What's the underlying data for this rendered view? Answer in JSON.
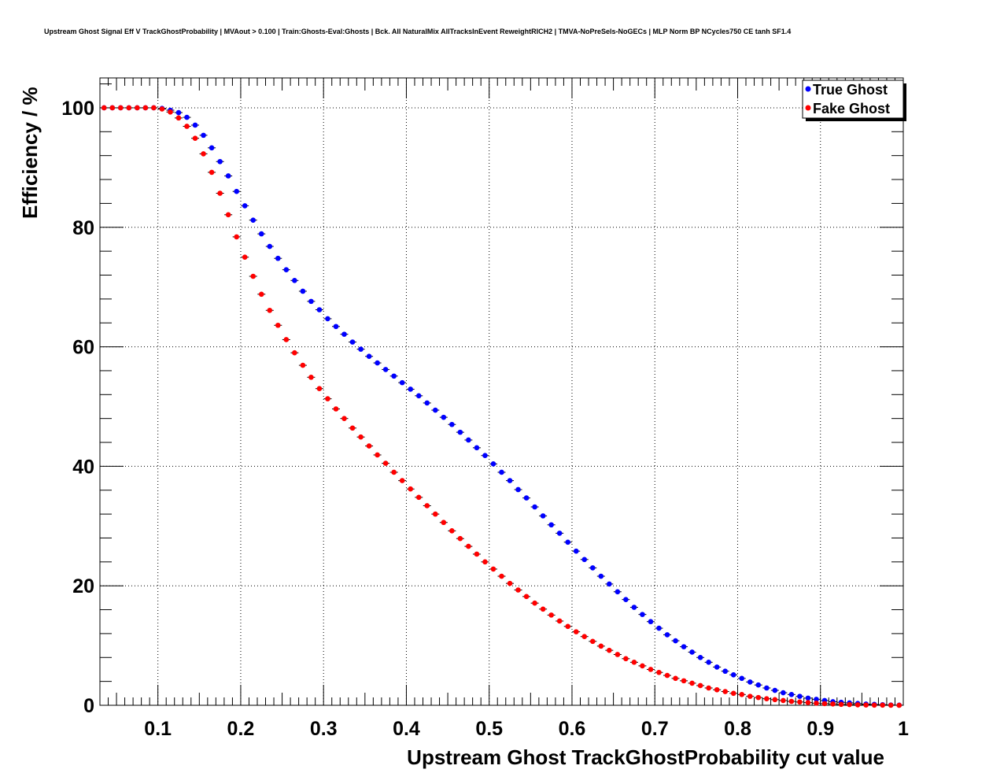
{
  "chart_data": {
    "type": "scatter",
    "title": "Upstream Ghost Signal Eff V TrackGhostProbability | MVAout > 0.100 | Train:Ghosts-Eval:Ghosts | Bck. All NaturalMix AllTracksInEvent ReweightRICH2 | TMVA-NoPreSels-NoGECs | MLP Norm BP NCycles750 CE tanh SF1.4",
    "xlabel": "Upstream Ghost TrackGhostProbability cut value",
    "ylabel": "Efficiency / %",
    "xlim": [
      0.03,
      1.0
    ],
    "ylim": [
      0,
      105
    ],
    "xticks": [
      0.1,
      0.2,
      0.3,
      0.4,
      0.5,
      0.6,
      0.7,
      0.8,
      0.9,
      1.0
    ],
    "xtick_labels": [
      "0.1",
      "0.2",
      "0.3",
      "0.4",
      "0.5",
      "0.6",
      "0.7",
      "0.8",
      "0.9",
      "1"
    ],
    "yticks": [
      0,
      20,
      40,
      60,
      80,
      100
    ],
    "ytick_labels": [
      "0",
      "20",
      "40",
      "60",
      "80",
      "100"
    ],
    "grid": true,
    "legend_position": "top-right",
    "series": [
      {
        "name": "True Ghost",
        "color": "#0000ff",
        "points": [
          [
            0.035,
            100.0
          ],
          [
            0.045,
            100.0
          ],
          [
            0.055,
            100.0
          ],
          [
            0.065,
            100.0
          ],
          [
            0.075,
            100.0
          ],
          [
            0.085,
            100.0
          ],
          [
            0.095,
            100.0
          ],
          [
            0.105,
            99.9
          ],
          [
            0.115,
            99.6
          ],
          [
            0.125,
            99.2
          ],
          [
            0.135,
            98.4
          ],
          [
            0.145,
            97.1
          ],
          [
            0.155,
            95.4
          ],
          [
            0.165,
            93.3
          ],
          [
            0.175,
            91.0
          ],
          [
            0.185,
            88.6
          ],
          [
            0.195,
            86.0
          ],
          [
            0.205,
            83.6
          ],
          [
            0.215,
            81.2
          ],
          [
            0.225,
            78.9
          ],
          [
            0.235,
            76.8
          ],
          [
            0.245,
            74.8
          ],
          [
            0.255,
            72.9
          ],
          [
            0.265,
            71.1
          ],
          [
            0.275,
            69.3
          ],
          [
            0.285,
            67.6
          ],
          [
            0.295,
            66.2
          ],
          [
            0.305,
            64.7
          ],
          [
            0.315,
            63.4
          ],
          [
            0.325,
            62.1
          ],
          [
            0.335,
            60.8
          ],
          [
            0.345,
            59.6
          ],
          [
            0.355,
            58.4
          ],
          [
            0.365,
            57.3
          ],
          [
            0.375,
            56.2
          ],
          [
            0.385,
            55.1
          ],
          [
            0.395,
            54.0
          ],
          [
            0.405,
            52.9
          ],
          [
            0.415,
            51.8
          ],
          [
            0.425,
            50.6
          ],
          [
            0.435,
            49.4
          ],
          [
            0.445,
            48.2
          ],
          [
            0.455,
            47.0
          ],
          [
            0.465,
            45.7
          ],
          [
            0.475,
            44.4
          ],
          [
            0.485,
            43.1
          ],
          [
            0.495,
            41.8
          ],
          [
            0.505,
            40.4
          ],
          [
            0.515,
            39.0
          ],
          [
            0.525,
            37.6
          ],
          [
            0.535,
            36.1
          ],
          [
            0.545,
            34.7
          ],
          [
            0.555,
            33.2
          ],
          [
            0.565,
            31.7
          ],
          [
            0.575,
            30.2
          ],
          [
            0.585,
            28.8
          ],
          [
            0.595,
            27.3
          ],
          [
            0.605,
            25.8
          ],
          [
            0.615,
            24.4
          ],
          [
            0.625,
            23.0
          ],
          [
            0.635,
            21.6
          ],
          [
            0.645,
            20.3
          ],
          [
            0.655,
            19.0
          ],
          [
            0.665,
            17.7
          ],
          [
            0.675,
            16.4
          ],
          [
            0.685,
            15.2
          ],
          [
            0.695,
            14.0
          ],
          [
            0.705,
            12.9
          ],
          [
            0.715,
            11.8
          ],
          [
            0.725,
            10.8
          ],
          [
            0.735,
            9.8
          ],
          [
            0.745,
            8.9
          ],
          [
            0.755,
            8.0
          ],
          [
            0.765,
            7.2
          ],
          [
            0.775,
            6.4
          ],
          [
            0.785,
            5.7
          ],
          [
            0.795,
            5.1
          ],
          [
            0.805,
            4.5
          ],
          [
            0.815,
            3.9
          ],
          [
            0.825,
            3.4
          ],
          [
            0.835,
            2.9
          ],
          [
            0.845,
            2.5
          ],
          [
            0.855,
            2.1
          ],
          [
            0.865,
            1.8
          ],
          [
            0.875,
            1.5
          ],
          [
            0.885,
            1.2
          ],
          [
            0.895,
            1.0
          ],
          [
            0.905,
            0.8
          ],
          [
            0.915,
            0.6
          ],
          [
            0.925,
            0.5
          ],
          [
            0.935,
            0.4
          ],
          [
            0.945,
            0.3
          ],
          [
            0.955,
            0.2
          ],
          [
            0.965,
            0.15
          ],
          [
            0.975,
            0.1
          ],
          [
            0.985,
            0.05
          ],
          [
            0.995,
            0.02
          ]
        ]
      },
      {
        "name": "Fake Ghost",
        "color": "#ff0000",
        "points": [
          [
            0.035,
            100.0
          ],
          [
            0.045,
            100.0
          ],
          [
            0.055,
            100.0
          ],
          [
            0.065,
            100.0
          ],
          [
            0.075,
            100.0
          ],
          [
            0.085,
            100.0
          ],
          [
            0.095,
            100.0
          ],
          [
            0.105,
            99.8
          ],
          [
            0.115,
            99.3
          ],
          [
            0.125,
            98.3
          ],
          [
            0.135,
            96.9
          ],
          [
            0.145,
            94.9
          ],
          [
            0.155,
            92.3
          ],
          [
            0.165,
            89.2
          ],
          [
            0.175,
            85.7
          ],
          [
            0.185,
            82.1
          ],
          [
            0.195,
            78.4
          ],
          [
            0.205,
            75.0
          ],
          [
            0.215,
            71.8
          ],
          [
            0.225,
            68.8
          ],
          [
            0.235,
            66.1
          ],
          [
            0.245,
            63.6
          ],
          [
            0.255,
            61.2
          ],
          [
            0.265,
            59.0
          ],
          [
            0.275,
            56.9
          ],
          [
            0.285,
            54.9
          ],
          [
            0.295,
            53.0
          ],
          [
            0.305,
            51.3
          ],
          [
            0.315,
            49.6
          ],
          [
            0.325,
            48.0
          ],
          [
            0.335,
            46.4
          ],
          [
            0.345,
            44.9
          ],
          [
            0.355,
            43.4
          ],
          [
            0.365,
            41.9
          ],
          [
            0.375,
            40.5
          ],
          [
            0.385,
            39.0
          ],
          [
            0.395,
            37.6
          ],
          [
            0.405,
            36.2
          ],
          [
            0.415,
            34.8
          ],
          [
            0.425,
            33.4
          ],
          [
            0.435,
            32.0
          ],
          [
            0.445,
            30.6
          ],
          [
            0.455,
            29.2
          ],
          [
            0.465,
            27.9
          ],
          [
            0.475,
            26.6
          ],
          [
            0.485,
            25.3
          ],
          [
            0.495,
            24.0
          ],
          [
            0.505,
            22.8
          ],
          [
            0.515,
            21.6
          ],
          [
            0.525,
            20.4
          ],
          [
            0.535,
            19.3
          ],
          [
            0.545,
            18.2
          ],
          [
            0.555,
            17.1
          ],
          [
            0.565,
            16.1
          ],
          [
            0.575,
            15.1
          ],
          [
            0.585,
            14.1
          ],
          [
            0.595,
            13.2
          ],
          [
            0.605,
            12.3
          ],
          [
            0.615,
            11.5
          ],
          [
            0.625,
            10.7
          ],
          [
            0.635,
            9.9
          ],
          [
            0.645,
            9.2
          ],
          [
            0.655,
            8.5
          ],
          [
            0.665,
            7.8
          ],
          [
            0.675,
            7.2
          ],
          [
            0.685,
            6.6
          ],
          [
            0.695,
            6.0
          ],
          [
            0.705,
            5.5
          ],
          [
            0.715,
            5.0
          ],
          [
            0.725,
            4.5
          ],
          [
            0.735,
            4.1
          ],
          [
            0.745,
            3.7
          ],
          [
            0.755,
            3.3
          ],
          [
            0.765,
            2.9
          ],
          [
            0.775,
            2.6
          ],
          [
            0.785,
            2.3
          ],
          [
            0.795,
            2.0
          ],
          [
            0.805,
            1.8
          ],
          [
            0.815,
            1.5
          ],
          [
            0.825,
            1.3
          ],
          [
            0.835,
            1.1
          ],
          [
            0.845,
            0.95
          ],
          [
            0.855,
            0.8
          ],
          [
            0.865,
            0.65
          ],
          [
            0.875,
            0.55
          ],
          [
            0.885,
            0.45
          ],
          [
            0.895,
            0.35
          ],
          [
            0.905,
            0.28
          ],
          [
            0.915,
            0.22
          ],
          [
            0.925,
            0.16
          ],
          [
            0.935,
            0.12
          ],
          [
            0.945,
            0.08
          ],
          [
            0.955,
            0.05
          ],
          [
            0.965,
            0.03
          ],
          [
            0.975,
            0.02
          ],
          [
            0.985,
            0.01
          ],
          [
            0.995,
            0.0
          ]
        ]
      }
    ]
  }
}
